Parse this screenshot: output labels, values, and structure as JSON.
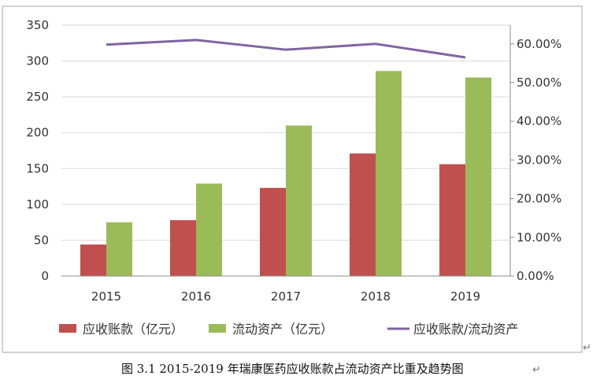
{
  "chart_data": {
    "type": "bar",
    "categories": [
      "2015",
      "2016",
      "2017",
      "2018",
      "2019"
    ],
    "series": [
      {
        "name": "应收账款（亿元）",
        "type": "bar",
        "axis": "left",
        "color": "#c0504d",
        "values": [
          44,
          78,
          123,
          171,
          156
        ]
      },
      {
        "name": "流动资产（亿元）",
        "type": "bar",
        "axis": "left",
        "color": "#9bbb59",
        "values": [
          75,
          129,
          210,
          286,
          277
        ]
      },
      {
        "name": "应收账款/流动资产",
        "type": "line",
        "axis": "right",
        "color": "#8064a2",
        "values": [
          59.8,
          61.0,
          58.5,
          60.0,
          56.5
        ]
      }
    ],
    "y_left": {
      "ylim": [
        0,
        350
      ],
      "ticks": [
        "0",
        "50",
        "100",
        "150",
        "200",
        "250",
        "300",
        "350"
      ]
    },
    "y_right": {
      "ylim": [
        0,
        65
      ],
      "ticks": [
        "0.00%",
        "10.00%",
        "20.00%",
        "30.00%",
        "40.00%",
        "50.00%",
        "60.00%"
      ]
    },
    "grid": "horizontal",
    "legend": "bottom"
  },
  "legend": {
    "items": [
      "应收账款（亿元）",
      "流动资产（亿元）",
      "应收账款/流动资产"
    ],
    "return_mark": "↵"
  },
  "caption": "图 3.1  2015-2019 年瑞康医药应收账款占流动资产比重及趋势图",
  "caption_mark": "↵"
}
